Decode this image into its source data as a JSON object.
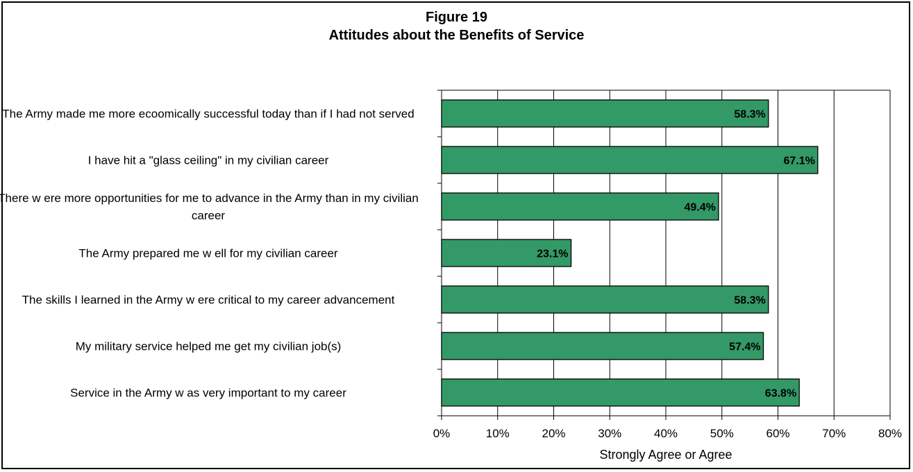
{
  "chart_data": {
    "type": "bar",
    "orientation": "horizontal",
    "title": "Figure 19",
    "subtitle": "Attitudes about the Benefits of Service",
    "xlabel": "Strongly Agree or Agree",
    "xlim": [
      0,
      80
    ],
    "x_ticks": [
      "0%",
      "10%",
      "20%",
      "30%",
      "40%",
      "50%",
      "60%",
      "70%",
      "80%"
    ],
    "grid": "vertical",
    "bar_color": "#339966",
    "categories": [
      "The Army made me more ecoomically successful today than if I had not served",
      "I have hit a \"glass ceiling\" in my civilian career",
      "There w ere more opportunities for me to advance in the Army than in my civilian career",
      "The Army prepared me w ell for my civilian career",
      "The skills I learned in the Army w ere critical to my career advancement",
      "My military service helped me get my civilian job(s)",
      "Service in the Army w as very important to my career"
    ],
    "values": [
      58.3,
      67.1,
      49.4,
      23.1,
      58.3,
      57.4,
      63.8
    ],
    "value_labels": [
      "58.3%",
      "67.1%",
      "49.4%",
      "23.1%",
      "58.3%",
      "57.4%",
      "63.8%"
    ]
  }
}
